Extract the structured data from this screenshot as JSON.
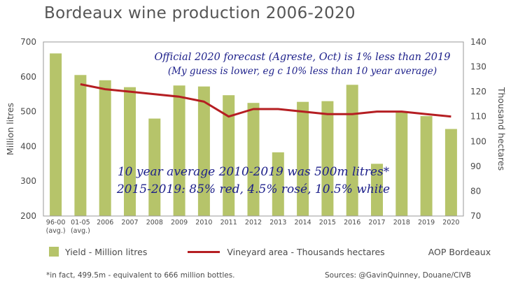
{
  "title": "Bordeaux wine production 2006-2020",
  "chart_data": {
    "type": "bar",
    "title": "Bordeaux wine production 2006-2020",
    "categories": [
      "96-00\n(avg.)",
      "01-05\n(avg.)",
      "2006",
      "2007",
      "2008",
      "2009",
      "2010",
      "2011",
      "2012",
      "2013",
      "2014",
      "2015",
      "2016",
      "2017",
      "2018",
      "2019",
      "2020"
    ],
    "series": [
      {
        "name": "Yield - Million litres",
        "type": "bar",
        "axis": "left",
        "color": "#b6c46a",
        "values": [
          667,
          605,
          590,
          570,
          480,
          575,
          572,
          547,
          525,
          383,
          528,
          530,
          577,
          350,
          500,
          487,
          450
        ]
      },
      {
        "name": "Vineyard area - Thousands hectares",
        "type": "line",
        "axis": "right",
        "color": "#b51e22",
        "values": [
          null,
          123,
          121,
          120,
          119,
          118,
          116,
          110,
          113,
          113,
          112,
          111,
          111,
          112,
          112,
          111,
          110
        ]
      }
    ],
    "ylabel": "Million litres",
    "ylim": [
      200,
      700
    ],
    "yticks": [
      200,
      300,
      400,
      500,
      600,
      700
    ],
    "y2label": "Thousand hectares",
    "y2lim": [
      70,
      140
    ],
    "y2ticks": [
      70,
      80,
      90,
      100,
      110,
      120,
      130,
      140
    ],
    "grid": false,
    "legend_position": "bottom",
    "annotations": {
      "forecast_line1": "Official 2020 forecast (Agreste, Oct) is 1% less than 2019",
      "forecast_line2": "(My guess is lower, eg c 10% less than 10 year average)",
      "average_line1": "10 year average 2010-2019 was 500m litres*",
      "average_line2": "2015-2019: 85% red, 4.5% rosé, 10.5% white"
    }
  },
  "legend": {
    "bar_label": "Yield - Million litres",
    "line_label": "Vineyard area - Thousands hectares",
    "extra_label": "AOP Bordeaux"
  },
  "footnote": "*in fact, 499.5m - equivalent to 666 million bottles.",
  "sources": "Sources: @GavinQuinney, Douane/CIVB"
}
